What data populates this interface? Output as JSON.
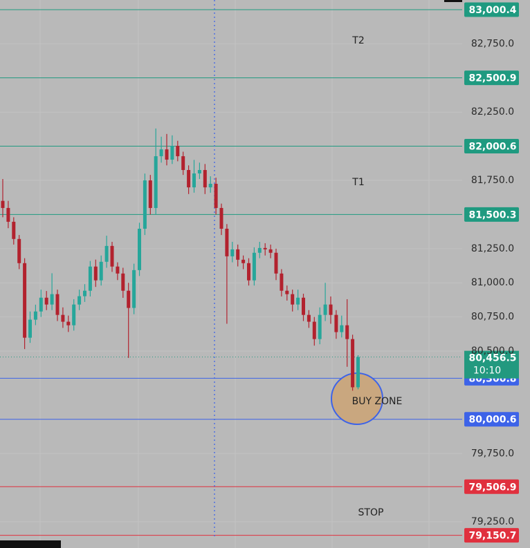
{
  "chart_data": {
    "type": "candlestick",
    "open": [
      81600,
      81548,
      81447,
      81321,
      81144,
      80598,
      80730,
      80790,
      80891,
      80841,
      80917,
      80765,
      80715,
      80689,
      80841,
      80902,
      80942,
      81119,
      81018,
      81154,
      81270,
      81119,
      81068,
      80942,
      80816,
      81093,
      81396,
      81750,
      81548,
      81927,
      81977,
      81902,
      82003,
      81927,
      81826,
      81699,
      81801,
      81826,
      81699,
      81725,
      81548,
      81396,
      81194,
      81245,
      81169,
      81144,
      81018,
      81220,
      81255,
      81245,
      81220,
      81068,
      80942,
      80917,
      80841,
      80891,
      80765,
      80715,
      80588,
      80765,
      80841,
      80765,
      80639,
      80689,
      80588,
      80235
    ],
    "high": [
      81760,
      81600,
      81480,
      81350,
      81180,
      80790,
      80840,
      80950,
      80940,
      81070,
      80950,
      80820,
      80760,
      80880,
      80950,
      80990,
      81160,
      81170,
      81200,
      81345,
      81300,
      81150,
      81110,
      81000,
      81140,
      81440,
      81800,
      81790,
      82130,
      82070,
      82090,
      82080,
      82040,
      81960,
      81860,
      81900,
      81880,
      81870,
      81780,
      81770,
      81580,
      81430,
      81300,
      81280,
      81200,
      81180,
      81260,
      81300,
      81290,
      81280,
      81250,
      81100,
      80980,
      80950,
      80950,
      80920,
      80800,
      80750,
      80820,
      81000,
      80900,
      80800,
      80760,
      80880,
      80620,
      80470
    ],
    "low": [
      81480,
      81400,
      81280,
      81100,
      80515,
      80560,
      80690,
      80750,
      80800,
      80800,
      80720,
      80670,
      80640,
      80650,
      80800,
      80860,
      80900,
      80970,
      80980,
      81110,
      81080,
      81020,
      80890,
      80450,
      80770,
      81050,
      81350,
      81500,
      81500,
      81880,
      81860,
      81870,
      81890,
      81790,
      81650,
      81660,
      81760,
      81650,
      81660,
      81500,
      81350,
      80700,
      81150,
      81120,
      81100,
      80980,
      80980,
      81180,
      81200,
      81180,
      81020,
      80900,
      80870,
      80790,
      80800,
      80720,
      80670,
      80540,
      80550,
      80720,
      80700,
      80590,
      80600,
      80385,
      80210,
      80220
    ],
    "close": [
      81548,
      81447,
      81321,
      81144,
      80598,
      80730,
      80790,
      80891,
      80841,
      80917,
      80765,
      80715,
      80689,
      80841,
      80902,
      80942,
      81119,
      81018,
      81154,
      81270,
      81119,
      81068,
      80942,
      80816,
      81093,
      81396,
      81750,
      81548,
      81927,
      81977,
      81902,
      82003,
      81927,
      81826,
      81699,
      81801,
      81826,
      81699,
      81725,
      81548,
      81396,
      81194,
      81245,
      81169,
      81144,
      81018,
      81220,
      81255,
      81245,
      81220,
      81068,
      80942,
      80917,
      80841,
      80891,
      80765,
      80715,
      80588,
      80765,
      80841,
      80765,
      80639,
      80689,
      80588,
      80235,
      80456.5
    ],
    "up_color": "#26a69a",
    "down_color": "#b2222e",
    "ylim": [
      79058,
      83071
    ],
    "yticks": [
      {
        "value": 82750,
        "label": "82,750.0"
      },
      {
        "value": 82250,
        "label": "82,250.0"
      },
      {
        "value": 81750,
        "label": "81,750.0"
      },
      {
        "value": 81250,
        "label": "81,250.0"
      },
      {
        "value": 81000,
        "label": "81,000.0"
      },
      {
        "value": 80750,
        "label": "80,750.0"
      },
      {
        "value": 80500,
        "label": "80,500.0"
      },
      {
        "value": 79750,
        "label": "79,750.0"
      },
      {
        "value": 79250,
        "label": "79,250.0"
      }
    ],
    "grid": true,
    "levels": [
      {
        "value": 83000.4,
        "label": "83,000.4",
        "color": "#1f9a80"
      },
      {
        "value": 82500.9,
        "label": "82,500.9",
        "color": "#1f9a80"
      },
      {
        "value": 82000.6,
        "label": "82,000.6",
        "color": "#1f9a80"
      },
      {
        "value": 81500.3,
        "label": "81,500.3",
        "color": "#1f9a80"
      },
      {
        "value": 80300.8,
        "label": "80,300.8",
        "color": "#3d63e8"
      },
      {
        "value": 80000.6,
        "label": "80,000.6",
        "color": "#3d63e8"
      },
      {
        "value": 79506.9,
        "label": "79,506.9",
        "color": "#e0303e"
      },
      {
        "value": 79150.7,
        "label": "79,150.7",
        "color": "#e0303e"
      }
    ],
    "last_price": {
      "value": 80456.5,
      "label": "80,456.5",
      "countdown": "10:10",
      "color": "#22997f"
    },
    "annotations": [
      "T2",
      "T1",
      "BUY ZONE",
      "STOP"
    ]
  }
}
